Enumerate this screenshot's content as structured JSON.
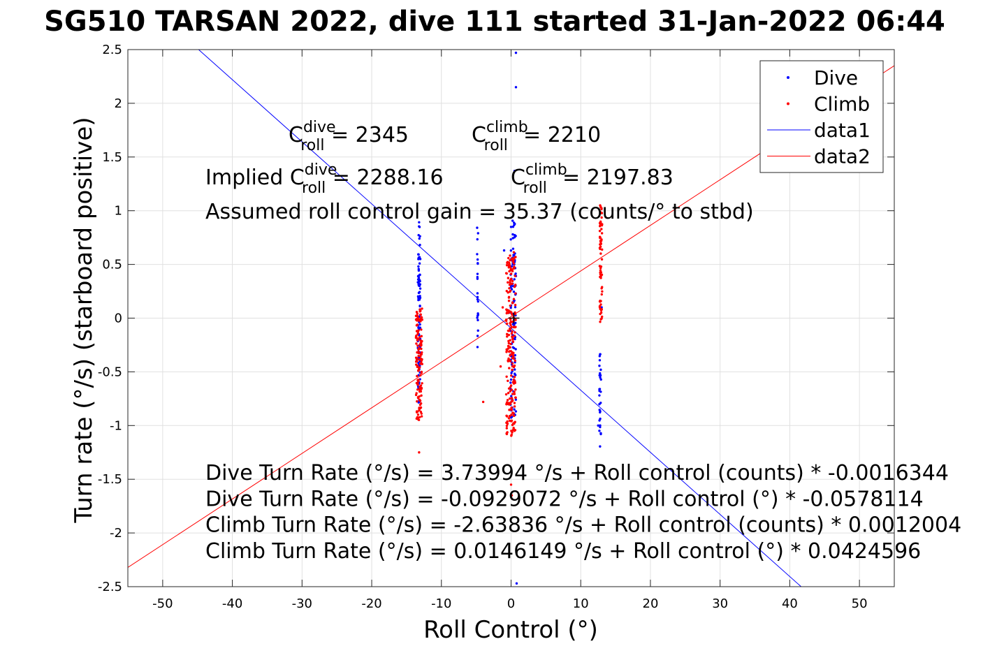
{
  "chart_data": {
    "type": "scatter",
    "title": "SG510 TARSAN 2022, dive 111 started 31-Jan-2022 06:44",
    "xlabel": "Roll Control (°)",
    "ylabel": "Turn rate (°/s) (starboard positive)",
    "xlim": [
      -55,
      55
    ],
    "ylim": [
      -2.5,
      2.5
    ],
    "xticks": [
      -50,
      -40,
      -30,
      -20,
      -10,
      0,
      10,
      20,
      30,
      40,
      50
    ],
    "xtick_labels": [
      "-50",
      "-40",
      "-30",
      "-20",
      "-10",
      "0",
      "10",
      "20",
      "30",
      "40",
      "50"
    ],
    "yticks": [
      -2.5,
      -2,
      -1.5,
      -1,
      -0.5,
      0,
      0.5,
      1,
      1.5,
      2,
      2.5
    ],
    "ytick_labels": [
      "-2.5",
      "-2",
      "-1.5",
      "-1",
      "-0.5",
      "0",
      "0.5",
      "1",
      "1.5",
      "2",
      "2.5"
    ],
    "grid": true,
    "legend_position": "top-right",
    "colors": {
      "dive": "#0000ff",
      "climb": "#ff0000",
      "axis": "#262626",
      "grid": "#e0e0e0"
    },
    "series": [
      {
        "name": "Dive",
        "kind": "points",
        "color": "#0000ff",
        "clusters": [
          {
            "x": -13.2,
            "ymin": -0.8,
            "ymax": 0.9,
            "n": 90,
            "spread": 0.35
          },
          {
            "x": -4.8,
            "ymin": -0.32,
            "ymax": 0.87,
            "n": 22,
            "spread": 0.15
          },
          {
            "x": 0.3,
            "ymin": -0.95,
            "ymax": 0.92,
            "n": 110,
            "spread": 0.8
          },
          {
            "x": 12.8,
            "ymin": -1.2,
            "ymax": -0.3,
            "n": 30,
            "spread": 0.25
          }
        ],
        "outliers": [
          [
            0.7,
            2.47
          ],
          [
            0.7,
            2.15
          ],
          [
            0.8,
            -2.47
          ],
          [
            0.5,
            1.37
          ],
          [
            -1.0,
            0.63
          ],
          [
            13.0,
            0.1
          ],
          [
            12.5,
            -1.0
          ]
        ]
      },
      {
        "name": "Climb",
        "kind": "points",
        "color": "#ff0000",
        "clusters": [
          {
            "x": -13.2,
            "ymin": -0.95,
            "ymax": 0.1,
            "n": 140,
            "spread": 0.9
          },
          {
            "x": 0.0,
            "ymin": -1.1,
            "ymax": 0.62,
            "n": 230,
            "spread": 1.4
          },
          {
            "x": 12.9,
            "ymin": -0.05,
            "ymax": 1.05,
            "n": 70,
            "spread": 0.35
          }
        ],
        "outliers": [
          [
            -13.2,
            -1.25
          ],
          [
            -4.0,
            -0.78
          ],
          [
            0.1,
            -1.65
          ],
          [
            0.0,
            -1.55
          ],
          [
            -1.2,
            0.1
          ],
          [
            -1.5,
            -0.45
          ]
        ]
      },
      {
        "name": "data1",
        "kind": "line",
        "color": "#0000ff",
        "x": [
          -55,
          55
        ],
        "y": [
          3.087,
          -3.273
        ]
      },
      {
        "name": "data2",
        "kind": "line",
        "color": "#ff0000",
        "x": [
          -55,
          55
        ],
        "y": [
          -2.321,
          2.35
        ]
      }
    ],
    "center_marker": [
      0.4,
      0.0
    ],
    "annotations": {
      "c_roll_dive": {
        "base": "C",
        "sup": "dive",
        "sub": "roll",
        "rest": " = 2345"
      },
      "c_roll_climb": {
        "base": "C",
        "sup": "climb",
        "sub": "roll",
        "rest": " = 2210"
      },
      "implied_prefix": "Implied ",
      "implied_dive": {
        "base": "C",
        "sup": "dive",
        "sub": "roll",
        "rest": " = 2288.16"
      },
      "implied_climb": {
        "base": "C",
        "sup": "climb",
        "sub": "roll",
        "rest": " = 2197.83"
      },
      "gain": "Assumed roll control gain = 35.37 (counts/° to stbd)",
      "fits": [
        "Dive Turn Rate (°/s) = 3.73994 °/s + Roll control (counts) * -0.0016344",
        "Dive Turn Rate (°/s) = -0.0929072 °/s + Roll control (°) * -0.0578114",
        "Climb Turn Rate (°/s) = -2.63836 °/s + Roll control (counts) * 0.0012004",
        "Climb Turn Rate (°/s) = 0.0146149 °/s + Roll control (°) * 0.0424596"
      ]
    }
  }
}
